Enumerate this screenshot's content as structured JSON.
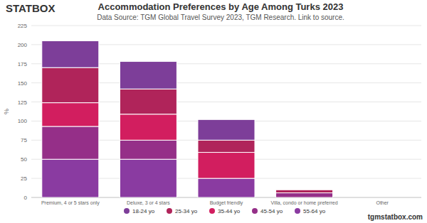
{
  "chart_data": {
    "type": "bar",
    "stacked": true,
    "grid": true,
    "legend": "bottom",
    "title": "Accommodation Preferences by Age Among Turks 2023",
    "subtitle": "Data Source: TGM Global Travel Survey 2023, TGM Research. Link to source.",
    "y_label": "%",
    "annotations": [
      "STATBOX",
      "tgmstatbox.com"
    ],
    "categories": [
      "Premium, 4 or 5 stars only",
      "Deluxe, 3 or 4 stars",
      "Budget friendly",
      "Villa, condo or home preferred",
      "Other"
    ],
    "series": [
      {
        "name": "18-24 yo",
        "color": "#7d3e99",
        "values": [
          35,
          36,
          27,
          0,
          0
        ]
      },
      {
        "name": "25-34 yo",
        "color": "#b0245a",
        "values": [
          46,
          33,
          16,
          4,
          0
        ]
      },
      {
        "name": "35-44 yo",
        "color": "#d21e5f",
        "values": [
          31,
          34,
          34,
          0,
          0
        ]
      },
      {
        "name": "45-54 yo",
        "color": "#952f88",
        "values": [
          43,
          25,
          0,
          6,
          0
        ]
      },
      {
        "name": "55-64 yo",
        "color": "#8a3ba1",
        "values": [
          50,
          50,
          25,
          0,
          0
        ]
      }
    ],
    "ylim": [
      0,
      225
    ],
    "yticks": [
      0,
      25,
      50,
      75,
      100,
      125,
      150,
      175,
      200,
      225
    ]
  }
}
